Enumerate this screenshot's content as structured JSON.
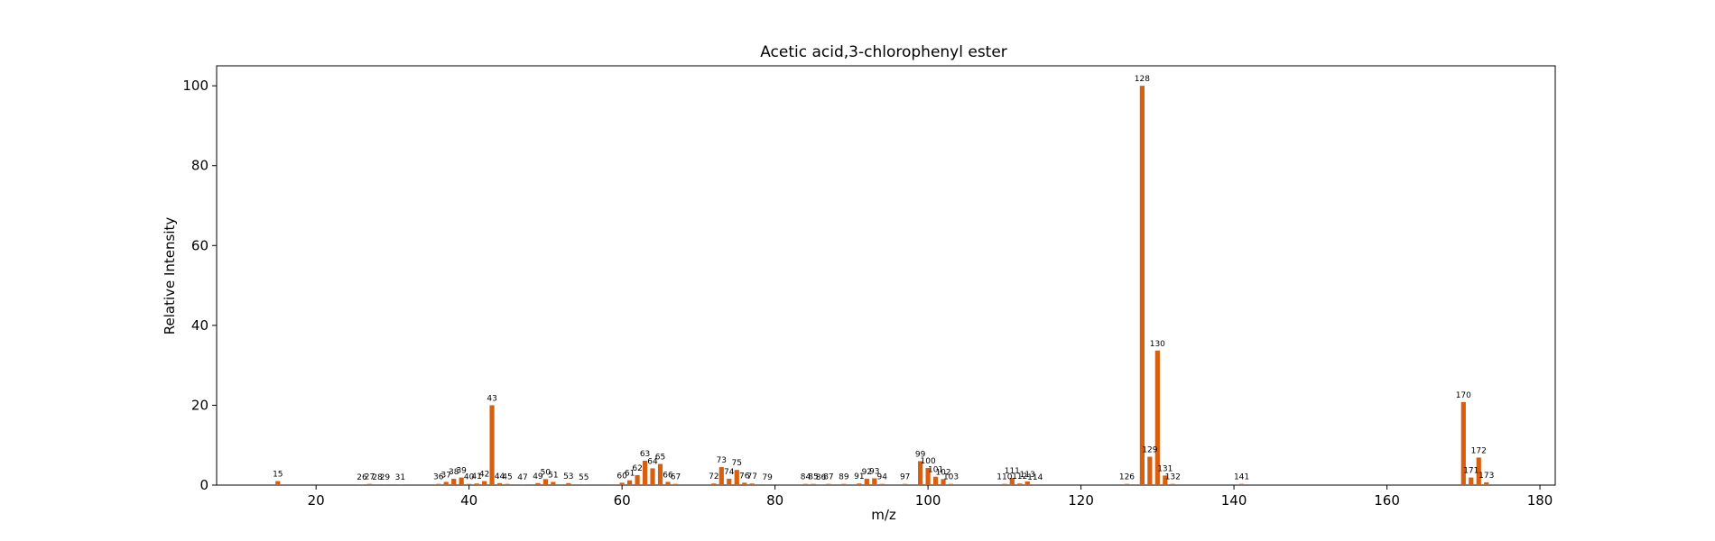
{
  "chart_data": {
    "type": "bar",
    "title": "Acetic acid,3-chlorophenyl ester",
    "xlabel": "m/z",
    "ylabel": "Relative Intensity",
    "xlim": [
      7,
      182
    ],
    "ylim": [
      0,
      105
    ],
    "xticks": [
      20,
      40,
      60,
      80,
      100,
      120,
      140,
      160,
      180
    ],
    "yticks": [
      0,
      20,
      40,
      60,
      80,
      100
    ],
    "grid": false,
    "bar_color": "#d95f0e",
    "peaks": [
      {
        "mz": 15,
        "intensity": 1.0,
        "label": "15"
      },
      {
        "mz": 26,
        "intensity": 0.2,
        "label": "26"
      },
      {
        "mz": 27,
        "intensity": 0.3,
        "label": "27"
      },
      {
        "mz": 28,
        "intensity": 0.2,
        "label": "28"
      },
      {
        "mz": 29,
        "intensity": 0.2,
        "label": "29"
      },
      {
        "mz": 31,
        "intensity": 0.2,
        "label": "31"
      },
      {
        "mz": 36,
        "intensity": 0.3,
        "label": "36"
      },
      {
        "mz": 37,
        "intensity": 0.8,
        "label": "37"
      },
      {
        "mz": 38,
        "intensity": 1.6,
        "label": "38"
      },
      {
        "mz": 39,
        "intensity": 1.9,
        "label": "39"
      },
      {
        "mz": 40,
        "intensity": 0.3,
        "label": "40"
      },
      {
        "mz": 41,
        "intensity": 0.4,
        "label": "41"
      },
      {
        "mz": 42,
        "intensity": 1.0,
        "label": "42"
      },
      {
        "mz": 43,
        "intensity": 20.0,
        "label": "43"
      },
      {
        "mz": 44,
        "intensity": 0.5,
        "label": "44"
      },
      {
        "mz": 45,
        "intensity": 0.3,
        "label": "45"
      },
      {
        "mz": 47,
        "intensity": 0.2,
        "label": "47"
      },
      {
        "mz": 49,
        "intensity": 0.5,
        "label": "49"
      },
      {
        "mz": 50,
        "intensity": 1.5,
        "label": "50"
      },
      {
        "mz": 51,
        "intensity": 0.8,
        "label": "51"
      },
      {
        "mz": 53,
        "intensity": 0.5,
        "label": "53"
      },
      {
        "mz": 55,
        "intensity": 0.2,
        "label": "55"
      },
      {
        "mz": 60,
        "intensity": 0.6,
        "label": "60"
      },
      {
        "mz": 61,
        "intensity": 1.2,
        "label": "61"
      },
      {
        "mz": 62,
        "intensity": 2.5,
        "label": "62"
      },
      {
        "mz": 63,
        "intensity": 6.1,
        "label": "63"
      },
      {
        "mz": 64,
        "intensity": 4.2,
        "label": "64"
      },
      {
        "mz": 65,
        "intensity": 5.3,
        "label": "65"
      },
      {
        "mz": 66,
        "intensity": 0.8,
        "label": "66"
      },
      {
        "mz": 67,
        "intensity": 0.3,
        "label": "67"
      },
      {
        "mz": 72,
        "intensity": 0.4,
        "label": "72"
      },
      {
        "mz": 73,
        "intensity": 4.5,
        "label": "73"
      },
      {
        "mz": 74,
        "intensity": 1.6,
        "label": "74"
      },
      {
        "mz": 75,
        "intensity": 3.8,
        "label": "75"
      },
      {
        "mz": 76,
        "intensity": 0.6,
        "label": "76"
      },
      {
        "mz": 77,
        "intensity": 0.4,
        "label": "77"
      },
      {
        "mz": 79,
        "intensity": 0.2,
        "label": "79"
      },
      {
        "mz": 84,
        "intensity": 0.3,
        "label": "84"
      },
      {
        "mz": 85,
        "intensity": 0.3,
        "label": "85"
      },
      {
        "mz": 86,
        "intensity": 0.2,
        "label": "86"
      },
      {
        "mz": 87,
        "intensity": 0.3,
        "label": "87"
      },
      {
        "mz": 89,
        "intensity": 0.3,
        "label": "89"
      },
      {
        "mz": 91,
        "intensity": 0.4,
        "label": "91"
      },
      {
        "mz": 92,
        "intensity": 1.6,
        "label": "92"
      },
      {
        "mz": 93,
        "intensity": 1.7,
        "label": "93"
      },
      {
        "mz": 94,
        "intensity": 0.3,
        "label": "94"
      },
      {
        "mz": 97,
        "intensity": 0.3,
        "label": "97"
      },
      {
        "mz": 99,
        "intensity": 6.0,
        "label": "99"
      },
      {
        "mz": 100,
        "intensity": 4.3,
        "label": "100"
      },
      {
        "mz": 101,
        "intensity": 2.1,
        "label": "101"
      },
      {
        "mz": 102,
        "intensity": 1.5,
        "label": "102"
      },
      {
        "mz": 103,
        "intensity": 0.3,
        "label": "103"
      },
      {
        "mz": 110,
        "intensity": 0.3,
        "label": "110"
      },
      {
        "mz": 111,
        "intensity": 1.8,
        "label": "111"
      },
      {
        "mz": 112,
        "intensity": 0.4,
        "label": "112"
      },
      {
        "mz": 113,
        "intensity": 0.9,
        "label": "113"
      },
      {
        "mz": 114,
        "intensity": 0.2,
        "label": "114"
      },
      {
        "mz": 126,
        "intensity": 0.3,
        "label": "126"
      },
      {
        "mz": 128,
        "intensity": 100.0,
        "label": "128"
      },
      {
        "mz": 129,
        "intensity": 7.1,
        "label": "129"
      },
      {
        "mz": 130,
        "intensity": 33.7,
        "label": "130"
      },
      {
        "mz": 131,
        "intensity": 2.4,
        "label": "131"
      },
      {
        "mz": 132,
        "intensity": 0.3,
        "label": "132"
      },
      {
        "mz": 141,
        "intensity": 0.3,
        "label": "141"
      },
      {
        "mz": 170,
        "intensity": 20.8,
        "label": "170"
      },
      {
        "mz": 171,
        "intensity": 1.9,
        "label": "171"
      },
      {
        "mz": 172,
        "intensity": 6.9,
        "label": "172"
      },
      {
        "mz": 173,
        "intensity": 0.7,
        "label": "173"
      }
    ]
  }
}
